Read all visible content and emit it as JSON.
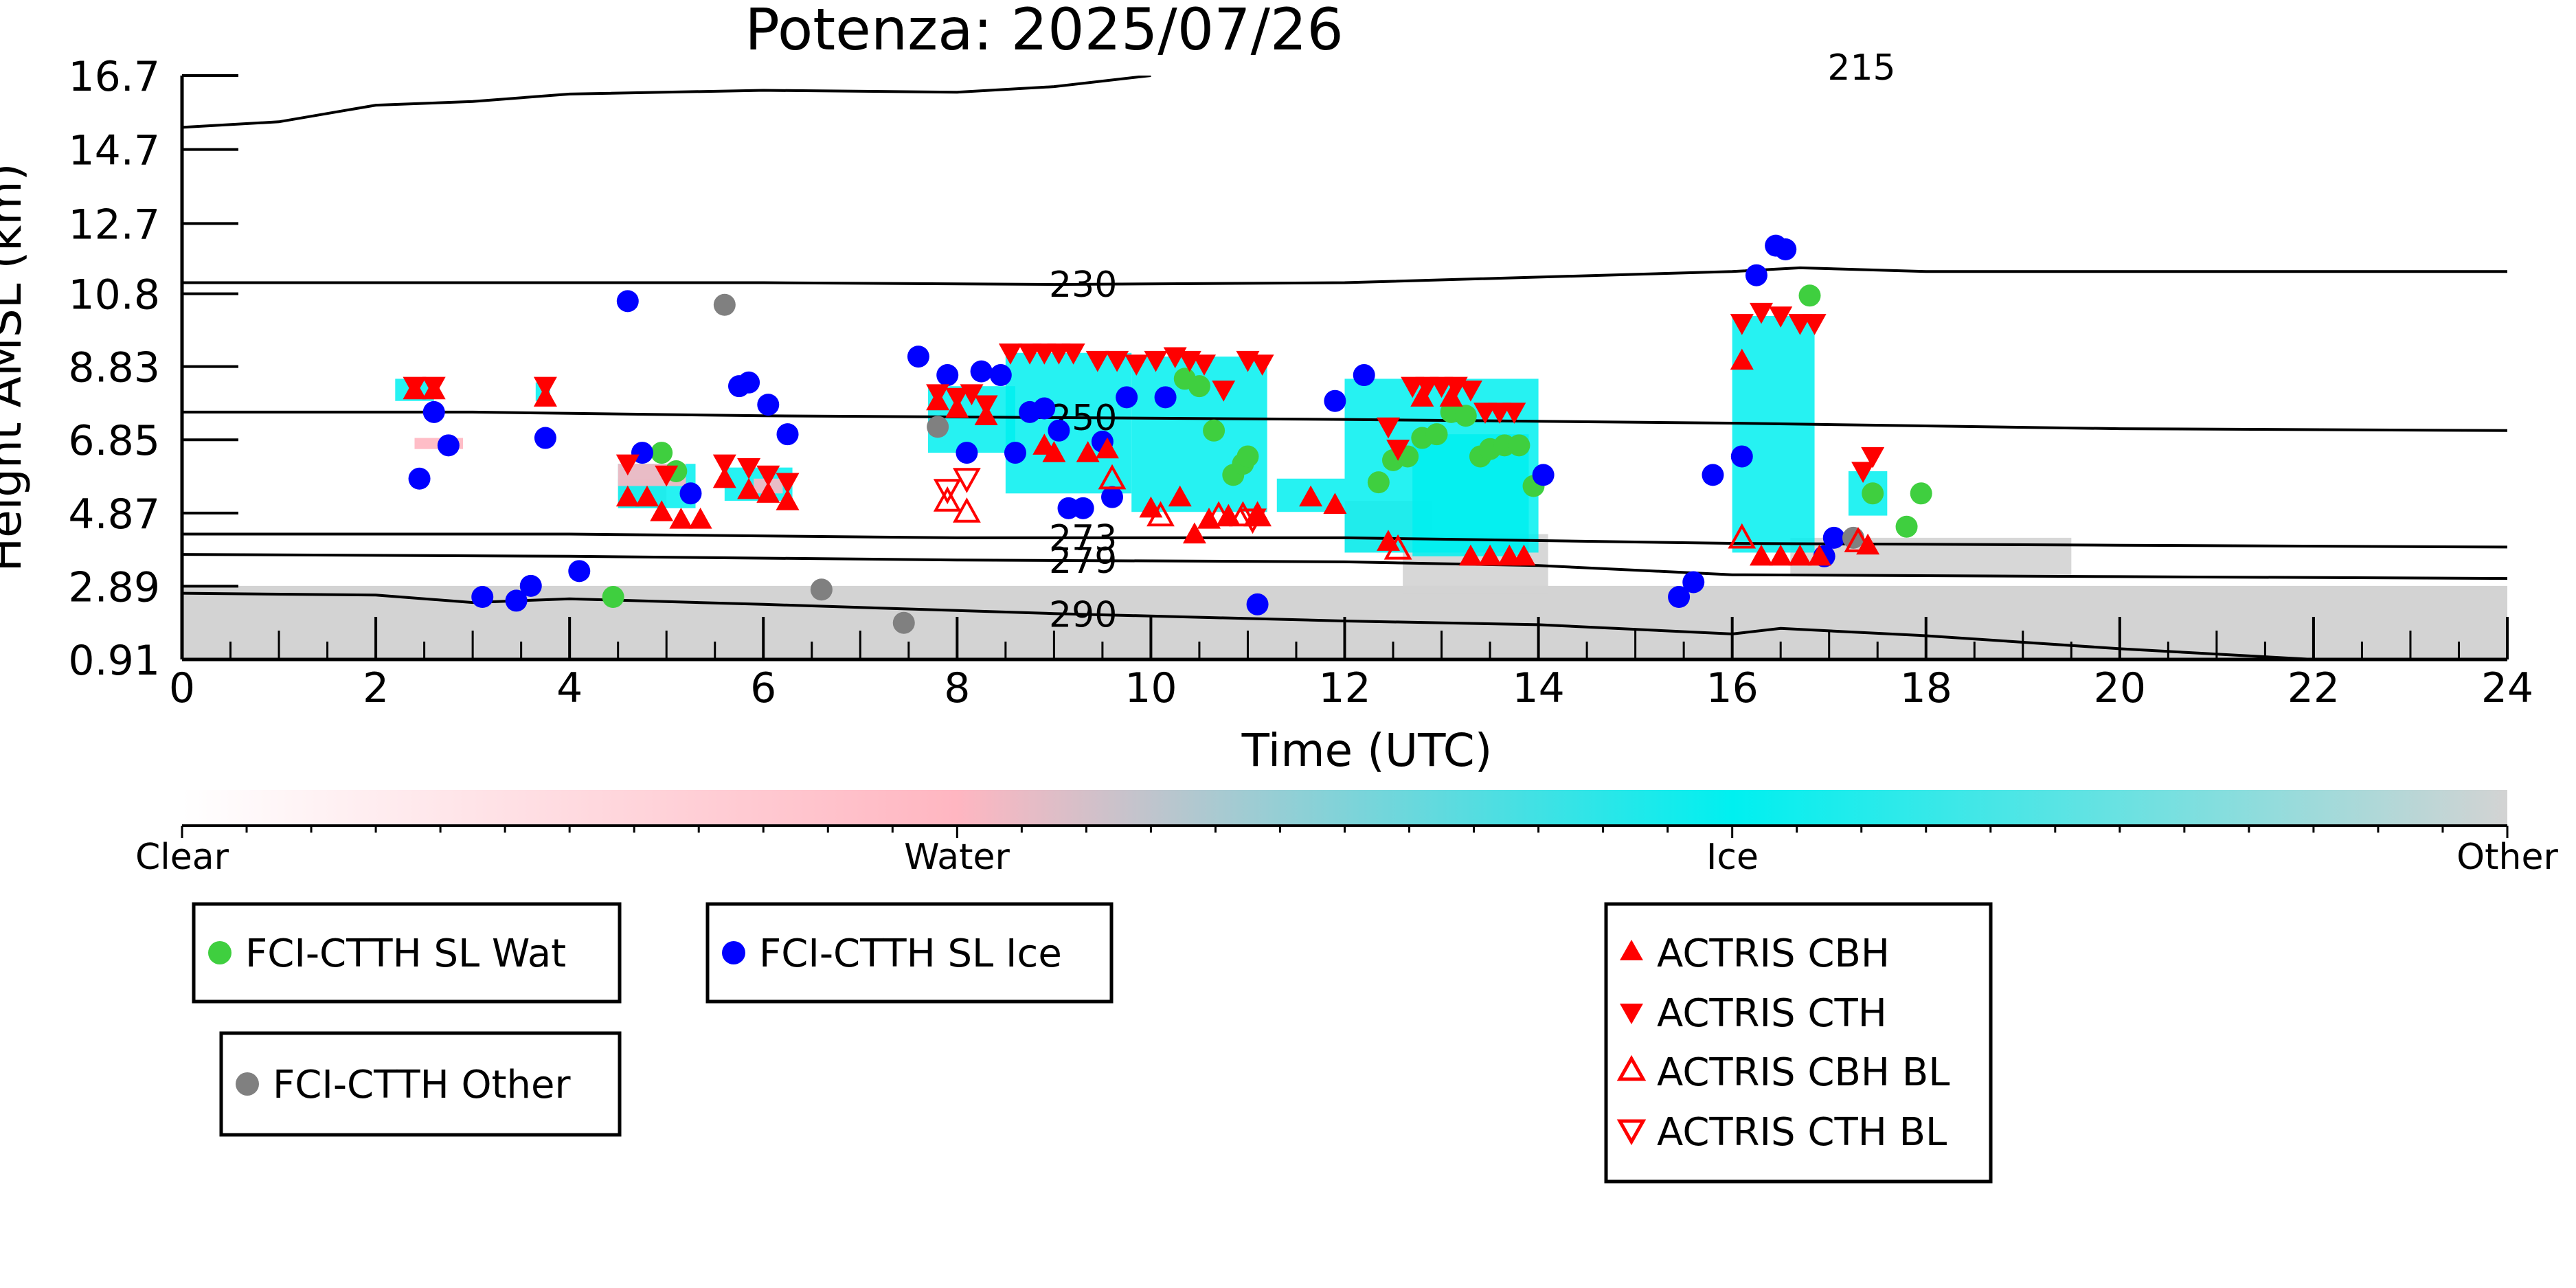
{
  "chart_data": {
    "type": "scatter",
    "title": "Potenza: 2025/07/26",
    "xlabel": "Time (UTC)",
    "ylabel": "Height AMSL (km)",
    "xlim": [
      0,
      24
    ],
    "ylim": [
      0.91,
      16.7
    ],
    "x_ticks": [
      "0",
      "2",
      "4",
      "6",
      "8",
      "10",
      "12",
      "14",
      "16",
      "18",
      "20",
      "22",
      "24"
    ],
    "y_ticks": [
      "0.91",
      "2.89",
      "4.87",
      "6.85",
      "8.83",
      "10.8",
      "12.7",
      "14.7",
      "16.7"
    ],
    "grid": false,
    "colorbar": {
      "labels": [
        "Clear",
        "Water",
        "Ice",
        "Other"
      ],
      "colors": [
        "#ffffff",
        "#ffb6c1",
        "#00f0f0",
        "#d3d3d3"
      ]
    },
    "temperature_contours": [
      {
        "label": "230",
        "points": [
          [
            0,
            11.1
          ],
          [
            6,
            11.1
          ],
          [
            9,
            11.05
          ],
          [
            12,
            11.1
          ],
          [
            16,
            11.4
          ],
          [
            16.7,
            11.5
          ],
          [
            18,
            11.4
          ],
          [
            24,
            11.4
          ]
        ]
      },
      {
        "label": "250",
        "points": [
          [
            0,
            7.6
          ],
          [
            3,
            7.6
          ],
          [
            6,
            7.5
          ],
          [
            9,
            7.45
          ],
          [
            12,
            7.4
          ],
          [
            16,
            7.3
          ],
          [
            20,
            7.15
          ],
          [
            24,
            7.1
          ]
        ]
      },
      {
        "label": "273",
        "points": [
          [
            0,
            4.3
          ],
          [
            4,
            4.3
          ],
          [
            8,
            4.2
          ],
          [
            12,
            4.2
          ],
          [
            16,
            4.05
          ],
          [
            20,
            4.0
          ],
          [
            24,
            3.95
          ]
        ]
      },
      {
        "label": "279",
        "points": [
          [
            0,
            3.75
          ],
          [
            4,
            3.7
          ],
          [
            8,
            3.6
          ],
          [
            12,
            3.55
          ],
          [
            14,
            3.45
          ],
          [
            16,
            3.2
          ],
          [
            20,
            3.15
          ],
          [
            24,
            3.1
          ]
        ]
      },
      {
        "label": "290",
        "points": [
          [
            0,
            2.7
          ],
          [
            2,
            2.65
          ],
          [
            3,
            2.45
          ],
          [
            4,
            2.55
          ],
          [
            6,
            2.4
          ],
          [
            9,
            2.15
          ],
          [
            12,
            1.95
          ],
          [
            14,
            1.85
          ],
          [
            16,
            1.6
          ],
          [
            16.5,
            1.75
          ],
          [
            18,
            1.55
          ],
          [
            20,
            1.2
          ],
          [
            22,
            0.91
          ]
        ]
      },
      {
        "label": "215",
        "points": [
          [
            0,
            15.3
          ],
          [
            1,
            15.45
          ],
          [
            2,
            15.9
          ],
          [
            3,
            16.0
          ],
          [
            4,
            16.2
          ],
          [
            6,
            16.3
          ],
          [
            8,
            16.25
          ],
          [
            9,
            16.4
          ],
          [
            10,
            16.7
          ]
        ]
      }
    ],
    "cloud_mask": {
      "ice": [
        [
          2.2,
          2.6,
          7.9,
          8.5
        ],
        [
          3.65,
          3.8,
          7.9,
          8.4
        ],
        [
          4.5,
          5.3,
          5.0,
          6.2
        ],
        [
          5.6,
          6.3,
          5.2,
          6.1
        ],
        [
          7.7,
          8.6,
          6.5,
          8.3
        ],
        [
          8.5,
          9.8,
          5.4,
          9.2
        ],
        [
          9.8,
          11.2,
          4.9,
          9.1
        ],
        [
          11.3,
          12.0,
          4.9,
          5.8
        ],
        [
          12.0,
          14.0,
          3.8,
          8.5
        ],
        [
          12.7,
          13.9,
          3.7,
          7.0
        ],
        [
          16.0,
          16.85,
          3.8,
          10.2
        ],
        [
          17.2,
          17.6,
          4.8,
          6.0
        ]
      ],
      "water": [
        [
          2.4,
          2.9,
          6.6,
          6.9
        ],
        [
          4.5,
          5.2,
          5.6,
          6.2
        ],
        [
          5.9,
          6.2,
          5.4,
          5.8
        ]
      ],
      "other_ground": [
        [
          0,
          24,
          0.91,
          2.9
        ]
      ],
      "other_mid": [
        [
          4.5,
          5.0,
          5.0,
          5.8
        ],
        [
          12.0,
          12.9,
          3.8,
          5.2
        ],
        [
          12.6,
          14.1,
          2.7,
          4.3
        ],
        [
          16.6,
          19.5,
          3.2,
          4.2
        ]
      ]
    },
    "series": [
      {
        "name": "FCI-CTTH SL Wat",
        "marker": "circle",
        "color": "#3fcf3f",
        "x": [
          4.45,
          4.95,
          5.1,
          10.35,
          10.5,
          10.65,
          10.85,
          10.95,
          11.0,
          12.35,
          12.5,
          12.65,
          12.8,
          12.95,
          13.1,
          13.25,
          13.4,
          13.5,
          13.65,
          13.8,
          13.95,
          16.8,
          17.45,
          17.8,
          17.95
        ],
        "y": [
          2.6,
          6.5,
          6.0,
          8.5,
          8.3,
          7.1,
          5.9,
          6.2,
          6.4,
          5.7,
          6.3,
          6.4,
          6.9,
          7.0,
          7.6,
          7.5,
          6.4,
          6.6,
          6.7,
          6.7,
          5.6,
          10.75,
          5.4,
          4.5,
          5.4
        ]
      },
      {
        "name": "FCI-CTTH SL Ice",
        "marker": "circle",
        "color": "#0000ff",
        "x": [
          2.45,
          2.6,
          2.75,
          3.1,
          3.45,
          3.6,
          3.75,
          4.1,
          4.6,
          4.75,
          5.25,
          5.75,
          5.85,
          6.05,
          6.25,
          7.6,
          7.9,
          8.1,
          8.25,
          8.45,
          8.6,
          8.75,
          8.9,
          9.05,
          9.15,
          9.3,
          9.5,
          9.6,
          9.75,
          10.15,
          11.1,
          11.9,
          12.2,
          14.05,
          15.45,
          15.6,
          15.8,
          16.1,
          16.25,
          16.45,
          16.55,
          16.95,
          17.05
        ],
        "y": [
          5.8,
          7.6,
          6.7,
          2.6,
          2.5,
          2.9,
          6.9,
          3.3,
          10.6,
          6.5,
          5.4,
          8.3,
          8.4,
          7.8,
          7.0,
          9.1,
          8.6,
          6.5,
          8.7,
          8.6,
          6.5,
          7.6,
          7.7,
          7.1,
          5.0,
          5.0,
          6.8,
          5.3,
          8.0,
          8.0,
          2.4,
          7.9,
          8.6,
          5.9,
          2.6,
          3.0,
          5.9,
          6.4,
          11.3,
          12.1,
          12.0,
          3.7,
          4.2
        ]
      },
      {
        "name": "FCI-CTTH Other",
        "marker": "circle",
        "color": "#808080",
        "x": [
          5.6,
          6.6,
          7.45,
          7.8,
          17.25
        ],
        "y": [
          10.5,
          2.8,
          1.9,
          7.2,
          4.2
        ]
      },
      {
        "name": "ACTRIS CBH",
        "marker": "triangle-up",
        "color": "#ff0000",
        "filled": true,
        "x": [
          2.4,
          2.6,
          3.75,
          4.6,
          4.8,
          4.95,
          5.15,
          5.35,
          5.6,
          5.85,
          6.05,
          6.25,
          7.8,
          8.0,
          8.3,
          8.9,
          9.0,
          9.35,
          9.55,
          10.0,
          10.3,
          10.45,
          10.6,
          10.8,
          11.1,
          11.65,
          11.9,
          12.45,
          12.8,
          13.1,
          13.3,
          13.5,
          13.7,
          13.85,
          16.1,
          16.3,
          16.5,
          16.7,
          16.9,
          17.4
        ],
        "y": [
          8.2,
          8.2,
          8.0,
          5.3,
          5.3,
          4.9,
          4.7,
          4.7,
          5.8,
          5.5,
          5.4,
          5.2,
          7.9,
          7.7,
          7.5,
          6.7,
          6.5,
          6.5,
          6.6,
          5.0,
          5.3,
          4.3,
          4.7,
          4.8,
          4.8,
          5.3,
          5.1,
          4.1,
          8.0,
          8.0,
          3.7,
          3.7,
          3.7,
          3.7,
          9.0,
          3.7,
          3.7,
          3.7,
          3.7,
          4.0
        ]
      },
      {
        "name": "ACTRIS CTH",
        "marker": "triangle-down",
        "color": "#ff0000",
        "filled": true,
        "x": [
          2.4,
          2.6,
          3.75,
          4.6,
          5.0,
          5.6,
          5.85,
          6.05,
          6.25,
          7.8,
          8.0,
          8.15,
          8.3,
          8.55,
          8.75,
          8.9,
          9.05,
          9.2,
          9.45,
          9.65,
          9.85,
          10.05,
          10.25,
          10.4,
          10.55,
          10.75,
          11.0,
          11.15,
          12.45,
          12.55,
          12.7,
          12.85,
          13.0,
          13.15,
          13.3,
          13.45,
          13.6,
          13.75,
          16.1,
          16.3,
          16.5,
          16.7,
          16.85,
          17.35,
          17.45
        ],
        "y": [
          8.3,
          8.3,
          8.3,
          6.2,
          5.9,
          6.2,
          6.1,
          5.9,
          5.7,
          8.1,
          8.0,
          8.1,
          7.8,
          9.2,
          9.2,
          9.2,
          9.2,
          9.2,
          9.0,
          9.0,
          8.9,
          9.0,
          9.1,
          9.0,
          8.9,
          8.2,
          9.0,
          8.9,
          7.2,
          6.6,
          8.3,
          8.3,
          8.3,
          8.3,
          8.2,
          7.6,
          7.6,
          7.6,
          10.0,
          10.3,
          10.2,
          10.0,
          10.0,
          6.0,
          6.4
        ]
      },
      {
        "name": "ACTRIS CBH BL",
        "marker": "triangle-up",
        "color": "#ff0000",
        "filled": false,
        "x": [
          7.9,
          8.1,
          9.6,
          10.1,
          10.7,
          10.95,
          11.1,
          12.55,
          16.1,
          17.3
        ],
        "y": [
          5.2,
          4.9,
          5.8,
          4.8,
          4.8,
          4.8,
          4.8,
          3.9,
          4.2,
          4.1
        ]
      },
      {
        "name": "ACTRIS CTH BL",
        "marker": "triangle-down",
        "color": "#ff0000",
        "filled": false,
        "x": [
          7.9,
          8.1,
          11.05
        ],
        "y": [
          5.5,
          5.8,
          4.7
        ]
      }
    ],
    "legend": {
      "placement": "bottom",
      "groups": [
        [
          "FCI-CTTH SL Wat"
        ],
        [
          "FCI-CTTH SL Ice"
        ],
        [
          "FCI-CTTH Other"
        ],
        [
          "ACTRIS CBH",
          "ACTRIS CTH",
          "ACTRIS CBH BL",
          "ACTRIS CTH BL"
        ]
      ]
    }
  }
}
